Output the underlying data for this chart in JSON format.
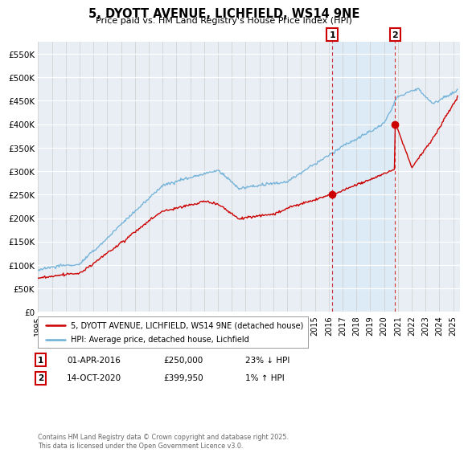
{
  "title": "5, DYOTT AVENUE, LICHFIELD, WS14 9NE",
  "subtitle": "Price paid vs. HM Land Registry's House Price Index (HPI)",
  "ylabel_ticks": [
    "£0",
    "£50K",
    "£100K",
    "£150K",
    "£200K",
    "£250K",
    "£300K",
    "£350K",
    "£400K",
    "£450K",
    "£500K",
    "£550K"
  ],
  "ytick_values": [
    0,
    50000,
    100000,
    150000,
    200000,
    250000,
    300000,
    350000,
    400000,
    450000,
    500000,
    550000
  ],
  "ylim": [
    0,
    575000
  ],
  "xlim_start": 1995.0,
  "xlim_end": 2025.5,
  "hpi_color": "#6baed6",
  "price_color": "#cc0000",
  "marker1_x": 2016.25,
  "marker1_y": 250000,
  "marker2_x": 2020.79,
  "marker2_y": 399950,
  "shade_color": "#ddeeff",
  "legend_line1": "5, DYOTT AVENUE, LICHFIELD, WS14 9NE (detached house)",
  "legend_line2": "HPI: Average price, detached house, Lichfield",
  "annotation1_date": "01-APR-2016",
  "annotation1_price": "£250,000",
  "annotation1_hpi": "23% ↓ HPI",
  "annotation2_date": "14-OCT-2020",
  "annotation2_price": "£399,950",
  "annotation2_hpi": "1% ↑ HPI",
  "footer": "Contains HM Land Registry data © Crown copyright and database right 2025.\nThis data is licensed under the Open Government Licence v3.0.",
  "bg_color": "#e8eef4",
  "grid_color": "#ffffff",
  "xtick_years": [
    1995,
    1996,
    1997,
    1998,
    1999,
    2000,
    2001,
    2002,
    2003,
    2004,
    2005,
    2006,
    2007,
    2008,
    2009,
    2010,
    2011,
    2012,
    2013,
    2014,
    2015,
    2016,
    2017,
    2018,
    2019,
    2020,
    2021,
    2022,
    2023,
    2024,
    2025
  ]
}
